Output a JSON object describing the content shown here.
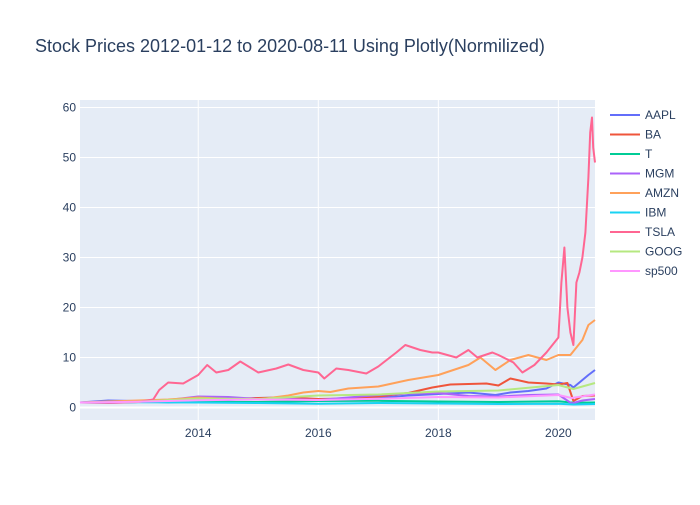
{
  "chart_data": {
    "type": "line",
    "title": "Stock Prices 2012-01-12 to 2020-08-11 Using Plotly(Normilized)",
    "xlabel": "",
    "ylabel": "",
    "xlim": [
      2012.03,
      2020.61
    ],
    "ylim": [
      -2.5,
      61.5
    ],
    "grid": true,
    "legend_position": "right",
    "x_ticks": [
      2014,
      2016,
      2018,
      2020
    ],
    "y_ticks": [
      0,
      10,
      20,
      30,
      40,
      50,
      60
    ],
    "series": [
      {
        "name": "AAPL",
        "color": "#636efa",
        "x": [
          2012.03,
          2012.5,
          2013.0,
          2013.5,
          2014.0,
          2014.5,
          2015.0,
          2015.5,
          2016.0,
          2016.5,
          2017.0,
          2017.5,
          2018.0,
          2018.5,
          2018.95,
          2019.2,
          2019.5,
          2019.8,
          2020.0,
          2020.2,
          2020.25,
          2020.4,
          2020.5,
          2020.61
        ],
        "y": [
          1.0,
          1.4,
          1.3,
          1.0,
          1.2,
          1.5,
          1.9,
          2.0,
          1.6,
          1.6,
          1.9,
          2.4,
          2.7,
          3.0,
          2.5,
          3.0,
          3.3,
          3.8,
          5.0,
          4.5,
          4.0,
          5.5,
          6.5,
          7.5
        ]
      },
      {
        "name": "BA",
        "color": "#EF553B",
        "x": [
          2012.03,
          2012.5,
          2013.0,
          2013.5,
          2014.0,
          2014.5,
          2015.0,
          2015.5,
          2016.0,
          2016.5,
          2017.0,
          2017.5,
          2017.9,
          2018.2,
          2018.5,
          2018.8,
          2019.0,
          2019.2,
          2019.5,
          2019.8,
          2020.0,
          2020.15,
          2020.25,
          2020.4,
          2020.61
        ],
        "y": [
          1.0,
          1.0,
          1.1,
          1.4,
          1.8,
          1.7,
          1.9,
          2.0,
          1.7,
          1.8,
          2.2,
          2.9,
          4.0,
          4.6,
          4.7,
          4.8,
          4.4,
          5.8,
          5.0,
          4.8,
          4.6,
          4.9,
          1.3,
          2.3,
          2.4
        ]
      },
      {
        "name": "T",
        "color": "#00cc96",
        "x": [
          2012.03,
          2013.0,
          2014.0,
          2015.0,
          2016.0,
          2017.0,
          2018.0,
          2019.0,
          2020.0,
          2020.25,
          2020.61
        ],
        "y": [
          1.0,
          1.15,
          1.15,
          1.1,
          1.3,
          1.35,
          1.2,
          1.1,
          1.25,
          0.95,
          1.0
        ]
      },
      {
        "name": "MGM",
        "color": "#ab63fa",
        "x": [
          2012.03,
          2012.5,
          2013.0,
          2013.5,
          2014.0,
          2014.5,
          2015.0,
          2015.5,
          2016.0,
          2016.5,
          2017.0,
          2017.5,
          2018.0,
          2018.5,
          2019.0,
          2019.5,
          2020.0,
          2020.22,
          2020.4,
          2020.61
        ],
        "y": [
          1.0,
          0.9,
          1.1,
          1.5,
          2.2,
          2.1,
          1.7,
          1.7,
          1.5,
          2.0,
          2.5,
          2.8,
          2.9,
          2.3,
          2.2,
          2.5,
          2.6,
          0.8,
          1.4,
          1.7
        ]
      },
      {
        "name": "AMZN",
        "color": "#FFA15A",
        "x": [
          2012.03,
          2012.5,
          2013.0,
          2013.5,
          2014.0,
          2014.5,
          2015.0,
          2015.5,
          2015.75,
          2016.0,
          2016.2,
          2016.5,
          2017.0,
          2017.5,
          2018.0,
          2018.5,
          2018.7,
          2018.95,
          2019.2,
          2019.5,
          2019.8,
          2020.0,
          2020.2,
          2020.4,
          2020.5,
          2020.61
        ],
        "y": [
          1.0,
          1.2,
          1.4,
          1.6,
          2.0,
          1.7,
          1.6,
          2.4,
          3.0,
          3.3,
          3.1,
          3.8,
          4.2,
          5.5,
          6.5,
          8.5,
          10.0,
          7.5,
          9.5,
          10.5,
          9.5,
          10.5,
          10.5,
          13.5,
          16.5,
          17.5
        ]
      },
      {
        "name": "IBM",
        "color": "#19d3f3",
        "x": [
          2012.03,
          2013.0,
          2014.0,
          2015.0,
          2016.0,
          2017.0,
          2018.0,
          2019.0,
          2020.0,
          2020.25,
          2020.61
        ],
        "y": [
          1.0,
          1.05,
          1.0,
          0.9,
          0.75,
          0.9,
          0.8,
          0.7,
          0.75,
          0.6,
          0.7
        ]
      },
      {
        "name": "TSLA",
        "color": "#FF6692",
        "x": [
          2012.03,
          2012.5,
          2013.0,
          2013.25,
          2013.35,
          2013.5,
          2013.75,
          2014.0,
          2014.15,
          2014.3,
          2014.5,
          2014.7,
          2015.0,
          2015.3,
          2015.5,
          2015.75,
          2016.0,
          2016.1,
          2016.3,
          2016.5,
          2016.8,
          2017.0,
          2017.3,
          2017.45,
          2017.7,
          2017.9,
          2018.0,
          2018.3,
          2018.5,
          2018.65,
          2018.9,
          2019.0,
          2019.25,
          2019.4,
          2019.6,
          2019.8,
          2020.0,
          2020.05,
          2020.1,
          2020.15,
          2020.2,
          2020.25,
          2020.3,
          2020.35,
          2020.4,
          2020.45,
          2020.5,
          2020.53,
          2020.56,
          2020.58,
          2020.61
        ],
        "y": [
          1.0,
          0.95,
          1.1,
          1.6,
          3.5,
          5.0,
          4.8,
          6.5,
          8.5,
          7.0,
          7.5,
          9.2,
          7.0,
          7.8,
          8.6,
          7.5,
          7.0,
          5.8,
          7.8,
          7.5,
          6.8,
          8.2,
          11.0,
          12.5,
          11.5,
          11.0,
          11.0,
          10.0,
          11.5,
          10.0,
          11.0,
          10.5,
          9.0,
          7.0,
          8.5,
          11.0,
          14.0,
          25.0,
          32.0,
          20.0,
          15.0,
          12.5,
          25.0,
          27.0,
          30.0,
          35.0,
          46.0,
          55.0,
          58.0,
          52.0,
          49.0
        ]
      },
      {
        "name": "GOOG",
        "color": "#B6E880",
        "x": [
          2012.03,
          2013.0,
          2014.0,
          2015.0,
          2016.0,
          2017.0,
          2018.0,
          2019.0,
          2020.0,
          2020.25,
          2020.61
        ],
        "y": [
          1.0,
          1.15,
          1.8,
          1.7,
          2.4,
          2.6,
          3.2,
          3.4,
          4.5,
          3.7,
          4.9
        ]
      },
      {
        "name": "sp500",
        "color": "#FF97FF",
        "x": [
          2012.03,
          2013.0,
          2014.0,
          2015.0,
          2016.0,
          2017.0,
          2018.0,
          2019.0,
          2020.0,
          2020.22,
          2020.61
        ],
        "y": [
          1.0,
          1.15,
          1.45,
          1.6,
          1.5,
          1.75,
          2.1,
          2.0,
          2.5,
          1.9,
          2.6
        ]
      }
    ]
  }
}
